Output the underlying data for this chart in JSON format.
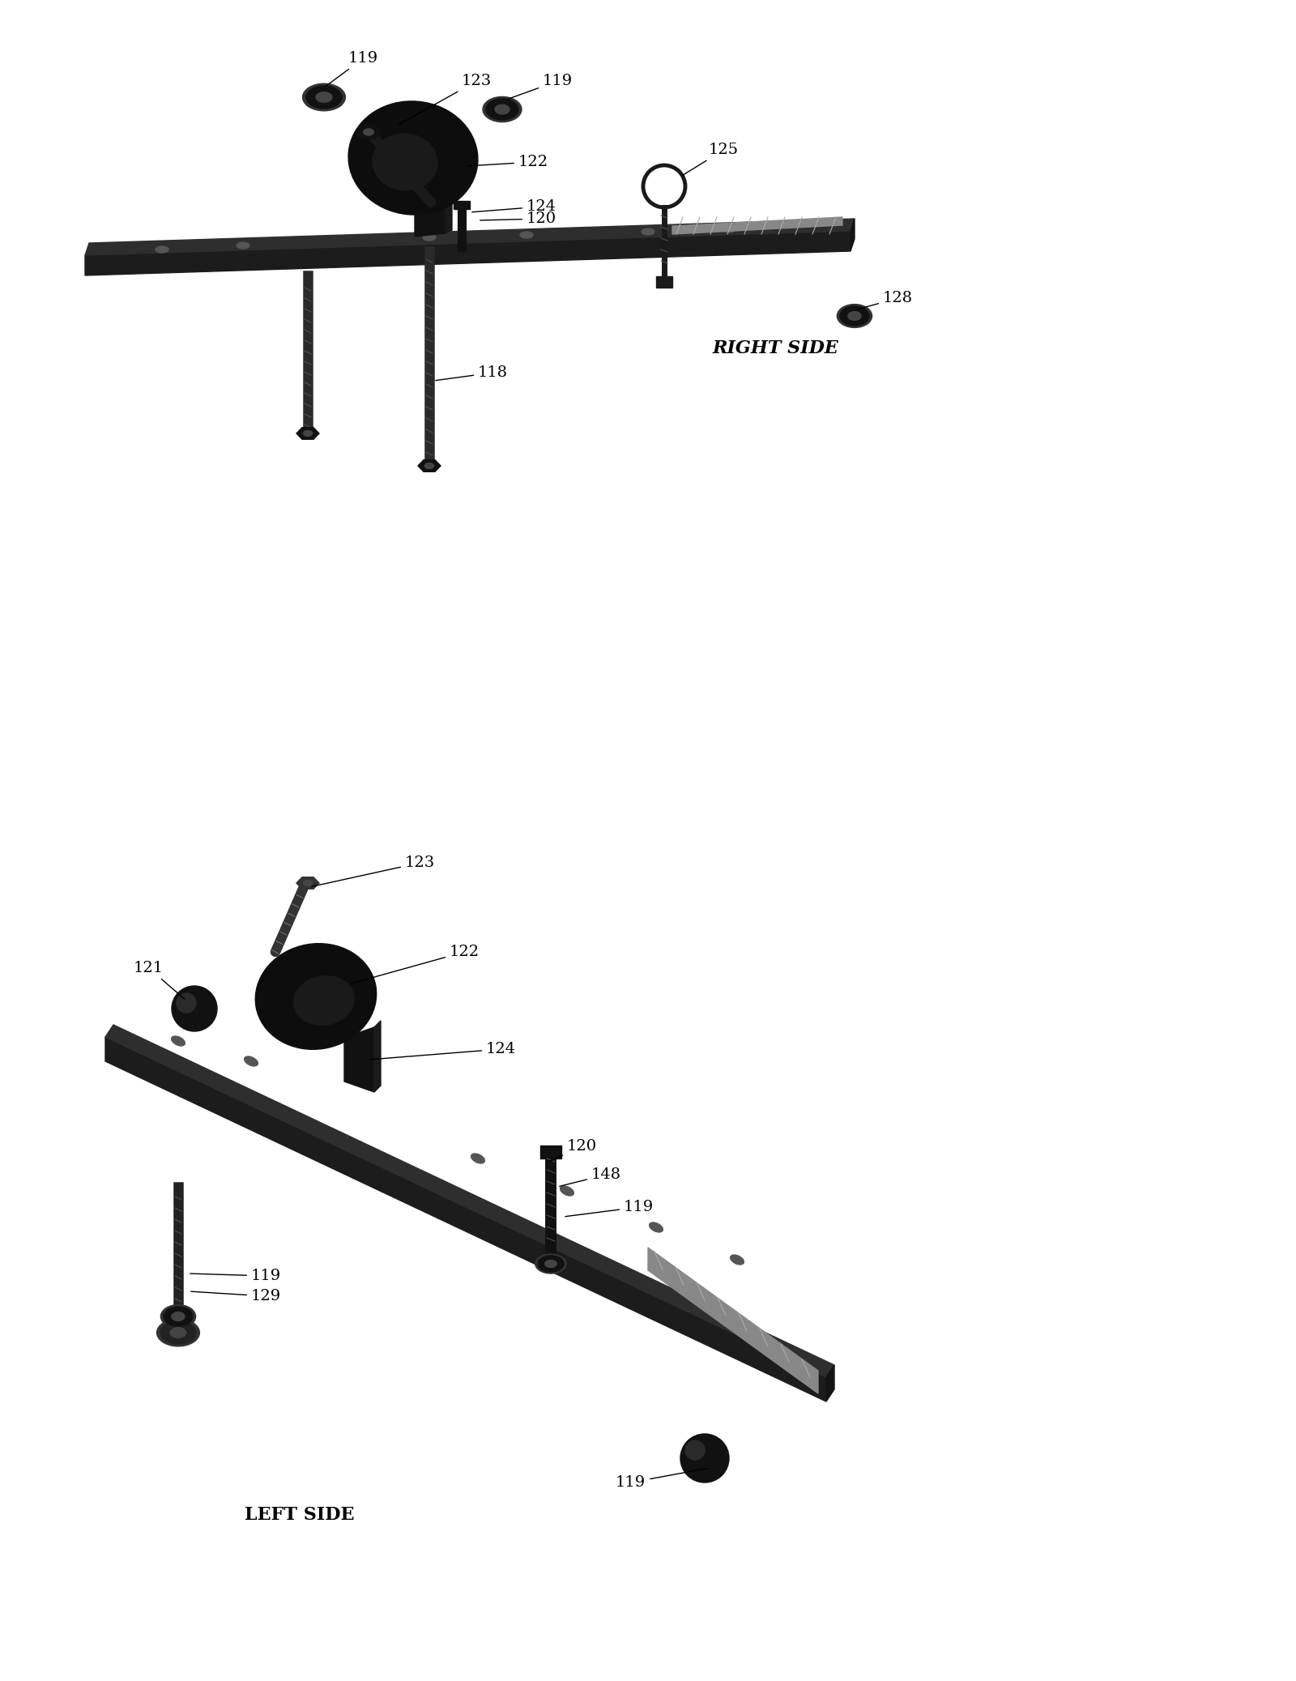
{
  "background_color": "#ffffff",
  "fig_width": 16.0,
  "fig_height": 20.75,
  "right_side_label": "RIGHT SIDE",
  "left_side_label": "LEFT SIDE"
}
